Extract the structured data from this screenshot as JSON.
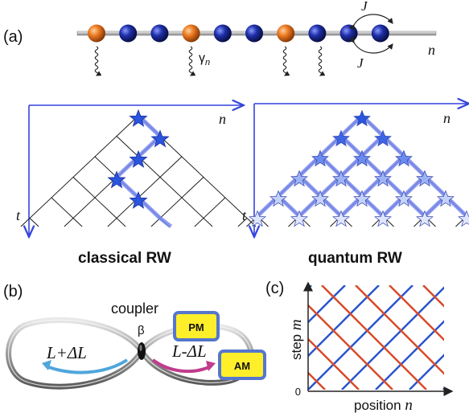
{
  "panel_a": {
    "label": "(a)",
    "chain_ball_types": [
      "orange",
      "blue",
      "blue",
      "orange",
      "blue",
      "blue",
      "orange",
      "blue",
      "blue",
      "blue"
    ],
    "coupling_top": "J",
    "coupling_bottom": "J",
    "site_index": "n",
    "decay_label": "γ",
    "decay_sub": "n",
    "classical": {
      "title": "classical RW",
      "axis_h": "n",
      "axis_v": "t"
    },
    "quantum": {
      "title": "quantum RW",
      "axis_h": "n",
      "axis_v": "t"
    }
  },
  "panel_b": {
    "label": "(b)",
    "coupler": "coupler",
    "beta": "β",
    "left_loop": "L+ΔL",
    "right_loop": "L-ΔL",
    "pm": "PM",
    "am": "AM"
  },
  "panel_c": {
    "label": "(c)",
    "ylabel_text": "step",
    "ylabel_var": "m",
    "xlabel_text": "position",
    "xlabel_var": "n",
    "origin": "0"
  },
  "colors": {
    "orange": "#e0661a",
    "blue_ball": "#1a2a9c",
    "axis": "#3344dd",
    "path": "#6677ee",
    "red_line": "#d84a2a",
    "blue_line": "#2a55cc",
    "box_border": "#5577cc",
    "box_fill": "#ffef2a"
  }
}
